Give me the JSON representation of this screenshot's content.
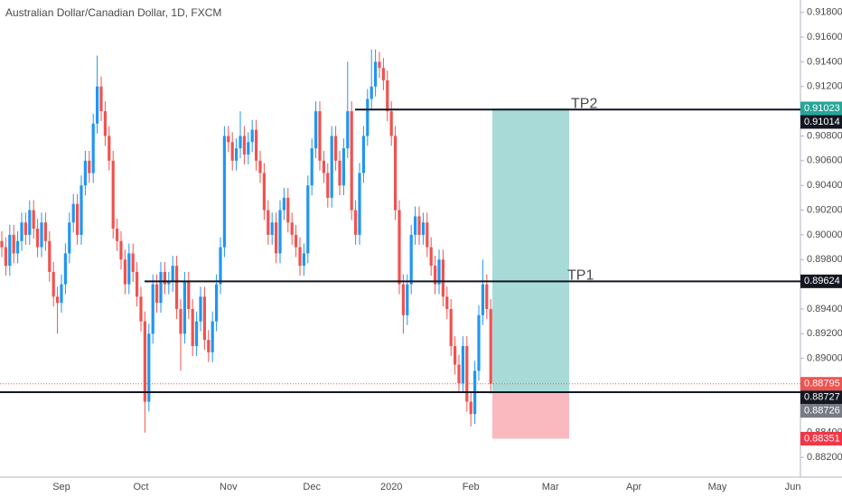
{
  "chart_data": {
    "type": "candlestick",
    "title": "Australian Dollar/Canadian Dollar, 1D, FXCM",
    "up_color": "#2196f3",
    "down_color": "#ef5350",
    "categories": [
      null,
      null,
      null,
      null,
      null,
      null,
      null,
      null,
      null,
      null,
      null,
      null,
      null,
      null,
      null,
      "Sep",
      null,
      null,
      null,
      null,
      null,
      null,
      null,
      null,
      null,
      null,
      null,
      null,
      null,
      null,
      null,
      null,
      null,
      null,
      null,
      "Oct",
      null,
      null,
      null,
      null,
      null,
      null,
      null,
      null,
      null,
      null,
      null,
      null,
      null,
      null,
      null,
      null,
      null,
      null,
      null,
      null,
      null,
      "Nov",
      null,
      null,
      null,
      null,
      null,
      null,
      null,
      null,
      null,
      null,
      null,
      null,
      null,
      null,
      null,
      null,
      null,
      null,
      null,
      null,
      "Dec",
      null,
      null,
      null,
      null,
      null,
      null,
      null,
      null,
      null,
      null,
      null,
      null,
      null,
      null,
      null,
      null,
      null,
      null,
      null,
      "2020",
      null,
      null,
      null,
      null,
      null,
      null,
      null,
      null,
      null,
      null,
      null,
      null,
      null,
      null,
      null,
      null,
      null,
      null,
      null,
      "Feb",
      null,
      null,
      null,
      null,
      null,
      null,
      null,
      null,
      null,
      null,
      null,
      null,
      null,
      null,
      null,
      null,
      null,
      null,
      null,
      "Mar",
      null,
      null,
      null,
      null,
      null,
      null,
      null,
      null,
      null,
      null,
      null,
      null,
      null,
      null,
      null,
      null,
      null,
      null,
      null,
      null,
      "Apr",
      null,
      null,
      null,
      null,
      null,
      null,
      null,
      null,
      null,
      null,
      null,
      null,
      null,
      null,
      null,
      null,
      null,
      null,
      null,
      null,
      "May",
      null,
      null,
      null,
      null,
      null,
      null,
      null,
      null,
      null,
      null,
      null,
      null,
      null,
      null,
      null,
      null,
      null,
      null,
      "Jun",
      null
    ],
    "open": [
      0.8995,
      0.899,
      0.8975,
      0.9,
      0.8985,
      0.8995,
      0.901,
      0.9,
      0.902,
      0.9005,
      0.899,
      0.901,
      0.8995,
      0.897,
      0.895,
      0.8945,
      0.896,
      0.8985,
      0.901,
      0.9025,
      0.9,
      0.904,
      0.906,
      0.905,
      0.909,
      0.912,
      0.91,
      0.908,
      0.906,
      0.9005,
      0.8995,
      0.898,
      0.896,
      0.8985,
      0.897,
      0.895,
      0.893,
      0.8865,
      0.892,
      0.896,
      0.8945,
      0.897,
      0.896,
      0.8962,
      0.8975,
      0.894,
      0.892,
      0.8962,
      0.894,
      0.891,
      0.893,
      0.895,
      0.8915,
      0.8905,
      0.893,
      0.896,
      0.899,
      0.908,
      0.9075,
      0.906,
      0.907,
      0.908,
      0.9065,
      0.9075,
      0.9085,
      0.906,
      0.905,
      0.902,
      0.9,
      0.901,
      0.8985,
      0.902,
      0.903,
      0.901,
      0.9,
      0.899,
      0.8975,
      0.8985,
      0.904,
      0.907,
      0.91,
      0.906,
      0.905,
      0.903,
      0.908,
      0.906,
      0.904,
      0.907,
      0.91,
      0.902,
      0.9,
      0.905,
      0.908,
      0.911,
      0.912,
      0.914,
      0.9135,
      0.9125,
      0.91,
      0.908,
      0.902,
      0.896,
      0.8935,
      0.896,
      0.9,
      0.9015,
      0.9,
      0.901,
      0.899,
      0.8975,
      0.896,
      0.898,
      0.895,
      0.894,
      0.891,
      0.8895,
      0.888,
      0.891,
      0.8865,
      0.8855,
      0.889,
      0.8935,
      0.896,
      0.894,
      null,
      null,
      null,
      null,
      null,
      null,
      null,
      null,
      null,
      null,
      null,
      null,
      null,
      null,
      null,
      null,
      null,
      null,
      null,
      null,
      null,
      null,
      null,
      null,
      null,
      null,
      null,
      null,
      null,
      null,
      null,
      null,
      null,
      null,
      null,
      null,
      null,
      null,
      null,
      null,
      null,
      null,
      null,
      null,
      null,
      null,
      null,
      null,
      null,
      null,
      null,
      null,
      null,
      null,
      null,
      null,
      null,
      null,
      null,
      null,
      null,
      null,
      null,
      null,
      null,
      null,
      null,
      null,
      null,
      null,
      null,
      null,
      null,
      null,
      null,
      null,
      null
    ],
    "high": [
      0.9003,
      0.8998,
      0.9008,
      0.9008,
      0.9003,
      0.9018,
      0.9018,
      0.9028,
      0.9028,
      0.9013,
      0.9018,
      0.9018,
      0.9003,
      0.8978,
      0.8958,
      0.8968,
      0.8993,
      0.9018,
      0.9033,
      0.9033,
      0.9048,
      0.9068,
      0.9068,
      0.9098,
      0.9145,
      0.9128,
      0.9108,
      0.9088,
      0.9068,
      0.9013,
      0.9003,
      0.8988,
      0.8993,
      0.8993,
      0.8978,
      0.8958,
      0.8938,
      0.8928,
      0.8968,
      0.8968,
      0.8978,
      0.8978,
      0.897,
      0.8983,
      0.8983,
      0.8948,
      0.897,
      0.897,
      0.8948,
      0.8938,
      0.8958,
      0.8958,
      0.8923,
      0.8938,
      0.8968,
      0.8998,
      0.9088,
      0.9088,
      0.9083,
      0.9078,
      0.91,
      0.9088,
      0.9083,
      0.9093,
      0.9093,
      0.9068,
      0.9058,
      0.9028,
      0.9018,
      0.9018,
      0.9028,
      0.9038,
      0.9038,
      0.9018,
      0.9008,
      0.8998,
      0.8993,
      0.9048,
      0.9078,
      0.9108,
      0.9108,
      0.9068,
      0.9058,
      0.9088,
      0.9088,
      0.9068,
      0.9078,
      0.914,
      0.9108,
      0.9028,
      0.9058,
      0.9088,
      0.9118,
      0.915,
      0.915,
      0.9148,
      0.9143,
      0.9133,
      0.9108,
      0.9088,
      0.9028,
      0.8968,
      0.8968,
      0.9008,
      0.9023,
      0.9023,
      0.9018,
      0.9018,
      0.8998,
      0.8983,
      0.8988,
      0.8988,
      0.8958,
      0.8948,
      0.8918,
      0.8903,
      0.8918,
      0.8918,
      0.8873,
      0.8898,
      0.8943,
      0.898,
      0.8968,
      0.8948,
      null,
      null,
      null,
      null,
      null,
      null,
      null,
      null,
      null,
      null,
      null,
      null,
      null,
      null,
      null,
      null,
      null,
      null,
      null,
      null,
      null,
      null,
      null,
      null,
      null,
      null,
      null,
      null,
      null,
      null,
      null,
      null,
      null,
      null,
      null,
      null,
      null,
      null,
      null,
      null,
      null,
      null,
      null,
      null,
      null,
      null,
      null,
      null,
      null,
      null,
      null,
      null,
      null,
      null,
      null,
      null,
      null,
      null,
      null,
      null,
      null,
      null,
      null,
      null,
      null,
      null,
      null,
      null,
      null,
      null,
      null,
      null,
      null,
      null,
      null,
      null,
      null
    ],
    "low": [
      0.8982,
      0.8967,
      0.8967,
      0.8977,
      0.8977,
      0.8987,
      0.8992,
      0.8992,
      0.8997,
      0.8982,
      0.8982,
      0.8987,
      0.8962,
      0.8942,
      0.892,
      0.8937,
      0.8952,
      0.8977,
      0.9002,
      0.8992,
      0.8992,
      0.9032,
      0.9042,
      0.9042,
      0.9082,
      0.9092,
      0.9072,
      0.9052,
      0.8997,
      0.8987,
      0.8972,
      0.8952,
      0.8952,
      0.8962,
      0.8942,
      0.8922,
      0.884,
      0.8857,
      0.8912,
      0.8937,
      0.8937,
      0.8952,
      0.8952,
      0.8954,
      0.8932,
      0.889,
      0.8912,
      0.8932,
      0.8902,
      0.8902,
      0.8922,
      0.8907,
      0.8897,
      0.8897,
      0.8922,
      0.8952,
      0.8982,
      0.9067,
      0.9052,
      0.9052,
      0.9062,
      0.9057,
      0.9057,
      0.9067,
      0.9052,
      0.9042,
      0.9012,
      0.8992,
      0.8992,
      0.8977,
      0.8977,
      0.9012,
      0.9002,
      0.8992,
      0.8982,
      0.8967,
      0.8967,
      0.8977,
      0.9032,
      0.9062,
      0.9052,
      0.9042,
      0.9022,
      0.9022,
      0.9052,
      0.9032,
      0.9032,
      0.9062,
      0.9012,
      0.8992,
      0.8992,
      0.9042,
      0.9072,
      0.9102,
      0.9112,
      0.9127,
      0.9117,
      0.9092,
      0.9072,
      0.9012,
      0.8952,
      0.892,
      0.8927,
      0.8952,
      0.8992,
      0.8992,
      0.8992,
      0.8982,
      0.8967,
      0.8952,
      0.8952,
      0.8942,
      0.8932,
      0.8902,
      0.8887,
      0.8872,
      0.8872,
      0.8857,
      0.8845,
      0.8847,
      0.8882,
      0.8927,
      0.8932,
      0.88715,
      null,
      null,
      null,
      null,
      null,
      null,
      null,
      null,
      null,
      null,
      null,
      null,
      null,
      null,
      null,
      null,
      null,
      null,
      null,
      null,
      null,
      null,
      null,
      null,
      null,
      null,
      null,
      null,
      null,
      null,
      null,
      null,
      null,
      null,
      null,
      null,
      null,
      null,
      null,
      null,
      null,
      null,
      null,
      null,
      null,
      null,
      null,
      null,
      null,
      null,
      null,
      null,
      null,
      null,
      null,
      null,
      null,
      null,
      null,
      null,
      null,
      null,
      null,
      null,
      null,
      null,
      null,
      null,
      null,
      null,
      null,
      null,
      null,
      null,
      null,
      null,
      null
    ],
    "close": [
      0.899,
      0.8975,
      0.9,
      0.8985,
      0.8995,
      0.901,
      0.9,
      0.902,
      0.9005,
      0.899,
      0.901,
      0.8995,
      0.897,
      0.895,
      0.8945,
      0.896,
      0.8985,
      0.901,
      0.9025,
      0.9,
      0.904,
      0.906,
      0.905,
      0.909,
      0.912,
      0.91,
      0.908,
      0.906,
      0.9005,
      0.8995,
      0.898,
      0.896,
      0.8985,
      0.897,
      0.895,
      0.893,
      0.8865,
      0.892,
      0.896,
      0.8945,
      0.897,
      0.896,
      0.8962,
      0.8975,
      0.894,
      0.892,
      0.8962,
      0.894,
      0.891,
      0.893,
      0.895,
      0.8915,
      0.8905,
      0.893,
      0.896,
      0.899,
      0.908,
      0.9075,
      0.906,
      0.907,
      0.908,
      0.9065,
      0.9075,
      0.9085,
      0.906,
      0.905,
      0.902,
      0.9,
      0.901,
      0.8985,
      0.902,
      0.903,
      0.901,
      0.9,
      0.899,
      0.8975,
      0.8985,
      0.904,
      0.907,
      0.91,
      0.906,
      0.905,
      0.903,
      0.908,
      0.906,
      0.904,
      0.907,
      0.91,
      0.902,
      0.9,
      0.905,
      0.908,
      0.911,
      0.912,
      0.914,
      0.9135,
      0.9125,
      0.91,
      0.908,
      0.902,
      0.896,
      0.8935,
      0.896,
      0.9,
      0.9015,
      0.9,
      0.901,
      0.899,
      0.8975,
      0.896,
      0.898,
      0.895,
      0.894,
      0.891,
      0.8895,
      0.888,
      0.891,
      0.8865,
      0.8855,
      0.889,
      0.8935,
      0.896,
      0.894,
      0.88795,
      null,
      null,
      null,
      null,
      null,
      null,
      null,
      null,
      null,
      null,
      null,
      null,
      null,
      null,
      null,
      null,
      null,
      null,
      null,
      null,
      null,
      null,
      null,
      null,
      null,
      null,
      null,
      null,
      null,
      null,
      null,
      null,
      null,
      null,
      null,
      null,
      null,
      null,
      null,
      null,
      null,
      null,
      null,
      null,
      null,
      null,
      null,
      null,
      null,
      null,
      null,
      null,
      null,
      null,
      null,
      null,
      null,
      null,
      null,
      null,
      null,
      null,
      null,
      null,
      null,
      null,
      null,
      null,
      null,
      null,
      null,
      null,
      null,
      null,
      null,
      null,
      null
    ],
    "ylim": [
      0.8804,
      0.919
    ],
    "yticks": [
      {
        "value": 0.882,
        "label": "0.88200"
      },
      {
        "value": 0.884,
        "label": "0.88400"
      },
      {
        "value": 0.886,
        "label": "0.88600"
      },
      {
        "value": 0.888,
        "label": "0.88800"
      },
      {
        "value": 0.89,
        "label": "0.89000"
      },
      {
        "value": 0.892,
        "label": "0.89200"
      },
      {
        "value": 0.894,
        "label": "0.89400"
      },
      {
        "value": 0.896,
        "label": "0.89600"
      },
      {
        "value": 0.898,
        "label": "0.89800"
      },
      {
        "value": 0.9,
        "label": "0.90000"
      },
      {
        "value": 0.902,
        "label": "0.90200"
      },
      {
        "value": 0.904,
        "label": "0.90400"
      },
      {
        "value": 0.906,
        "label": "0.90600"
      },
      {
        "value": 0.908,
        "label": "0.90800"
      },
      {
        "value": 0.91,
        "label": "0.91000"
      },
      {
        "value": 0.912,
        "label": "0.91200"
      },
      {
        "value": 0.914,
        "label": "0.91400"
      },
      {
        "value": 0.916,
        "label": "0.91600"
      },
      {
        "value": 0.918,
        "label": "0.91800"
      }
    ],
    "levels": [
      {
        "label": "TP2",
        "value": 0.91014
      },
      {
        "label": "TP1",
        "value": 0.89624
      },
      {
        "value": 0.88727
      }
    ],
    "position": {
      "target": 0.91023,
      "entry": 0.88726,
      "stop": 0.88351,
      "target_color": "#26a69a",
      "stop_color": "#f23645"
    }
  }
}
